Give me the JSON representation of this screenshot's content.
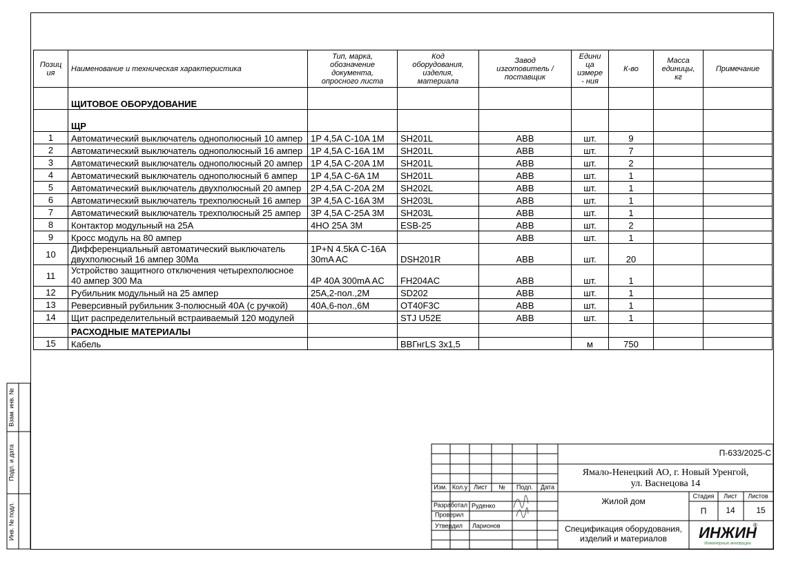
{
  "table": {
    "headers": [
      "Позиц\nия",
      "Наименование и техническая характеристика",
      "Тип, марка,\nобозначение\nдокумента,\nопросного листа",
      "Код\nоборудования,\nизделия,\nматериала",
      "Завод\nизготовитель /\nпоставщик",
      "Едини\nца\nизмере\n- ния",
      "К-во",
      "Масса\nединицы,\nкг",
      "Примечание"
    ],
    "rows": [
      {
        "section": "ЩИТОВОЕ ОБОРУДОВАНИЕ"
      },
      {
        "section": "ЩР"
      },
      {
        "pos": 1,
        "name": "Автоматический выключатель однополюсный 10 ампер",
        "type": "1P 4,5A C-10A 1M",
        "code": "SH201L",
        "maker": "ABB",
        "unit": "шт.",
        "qty": 9
      },
      {
        "pos": 2,
        "name": "Автоматический выключатель однополюсный 16 ампер",
        "type": "1P 4,5A C-16A 1M",
        "code": "SH201L",
        "maker": "ABB",
        "unit": "шт.",
        "qty": 7
      },
      {
        "pos": 3,
        "name": "Автоматический выключатель однополюсный 20 ампер",
        "type": "1P 4,5A C-20A 1M",
        "code": "SH201L",
        "maker": "ABB",
        "unit": "шт.",
        "qty": 2
      },
      {
        "pos": 4,
        "name": "Автоматический выключатель однополюсный 6 ампер",
        "type": "1P 4,5A  C-6A 1M",
        "code": "SH201L",
        "maker": "ABB",
        "unit": "шт.",
        "qty": 1
      },
      {
        "pos": 5,
        "name": "Автоматический выключатель двухполюсный 20 ампер",
        "type": "2P 4,5A  C-20A 2M",
        "code": "SH202L",
        "maker": "ABB",
        "unit": "шт.",
        "qty": 1
      },
      {
        "pos": 6,
        "name": "Автоматический выключатель трехполюсный 16 ампер",
        "type": "3P 4,5A  C-16A 3M",
        "code": "SH203L",
        "maker": "ABB",
        "unit": "шт.",
        "qty": 1
      },
      {
        "pos": 7,
        "name": "Автоматический выключатель трехполюсный 25 ампер",
        "type": "3P 4,5A  C-25A 3M",
        "code": "SH203L",
        "maker": "ABB",
        "unit": "шт.",
        "qty": 1
      },
      {
        "pos": 8,
        "name": "Контактор модульный на 25А",
        "type": "4НО 25А 3М",
        "code": "ESB-25",
        "maker": "ABB",
        "unit": "шт.",
        "qty": 2
      },
      {
        "pos": 9,
        "name": "Кросс модуль на 80 ампер",
        "maker": "ABB",
        "unit": "шт.",
        "qty": 1
      },
      {
        "pos": 10,
        "name": "Дифференциальный автоматический выключатель двухполюсный 16 ампер 30Ма",
        "type": "1P+N 4.5kA C-16A 30mA AC",
        "code": "DSH201R",
        "maker": "ABB",
        "unit": "шт.",
        "qty": 20
      },
      {
        "pos": 11,
        "name": "Устройство защитного отключения четырехполюсное 40 ампер 300 Ма",
        "type": "4P 40A 300mA AC",
        "code": "FH204AC",
        "maker": "ABB",
        "unit": "шт.",
        "qty": 1
      },
      {
        "pos": 12,
        "name": "Рубильник модульный на 25 ампер",
        "type": "25А,2-пол.,2М",
        "code": "SD202",
        "maker": "ABB",
        "unit": "шт.",
        "qty": 1
      },
      {
        "pos": 13,
        "name": "Реверсивный рубильник 3-полюсный 40А (с ручкой)",
        "type": "40А,6-пол.,6М",
        "code": "OT40F3C",
        "maker": "ABB",
        "unit": "шт.",
        "qty": 1
      },
      {
        "pos": 14,
        "name": "Щит распределительный встраиваемый 120 модулей",
        "code": "STJ U52E",
        "maker": "ABB",
        "unit": "шт.",
        "qty": 1
      },
      {
        "section": "РАСХОДНЫЕ МАТЕРИАЛЫ"
      },
      {
        "pos": 15,
        "name": "Кабель",
        "code": "ВВГнгLS 3x1,5",
        "unit": "м",
        "qty": 750
      }
    ]
  },
  "side_stamp": [
    "Взам. инв. №",
    "Подп. и дата",
    "Инв. № подл."
  ],
  "title_block": {
    "doc_number": "П-633/2025-С",
    "address": [
      "Ямало-Ненецкий АО, г. Новый Уренгой,",
      "ул. Васнецова 14"
    ],
    "object": "Жилой дом",
    "sheet_title": [
      "Спецификация оборудования,",
      "изделий и материалов"
    ],
    "headers": [
      "Изм.",
      "Кол.у",
      "Лист",
      "№",
      "Подп.",
      "Дата"
    ],
    "roles": [
      {
        "role": "Разработал",
        "name": "Руденко"
      },
      {
        "role": "Проверил"
      },
      {
        "role": "Утвердил",
        "name": "Ларионов"
      }
    ],
    "stage": {
      "labels": [
        "Стадия",
        "Лист",
        "Листов"
      ],
      "values": [
        "П",
        "14",
        "15"
      ]
    },
    "logo": {
      "name": "ИНЖИН",
      "mark": "®",
      "tagline": "Инженерные инновации"
    }
  }
}
